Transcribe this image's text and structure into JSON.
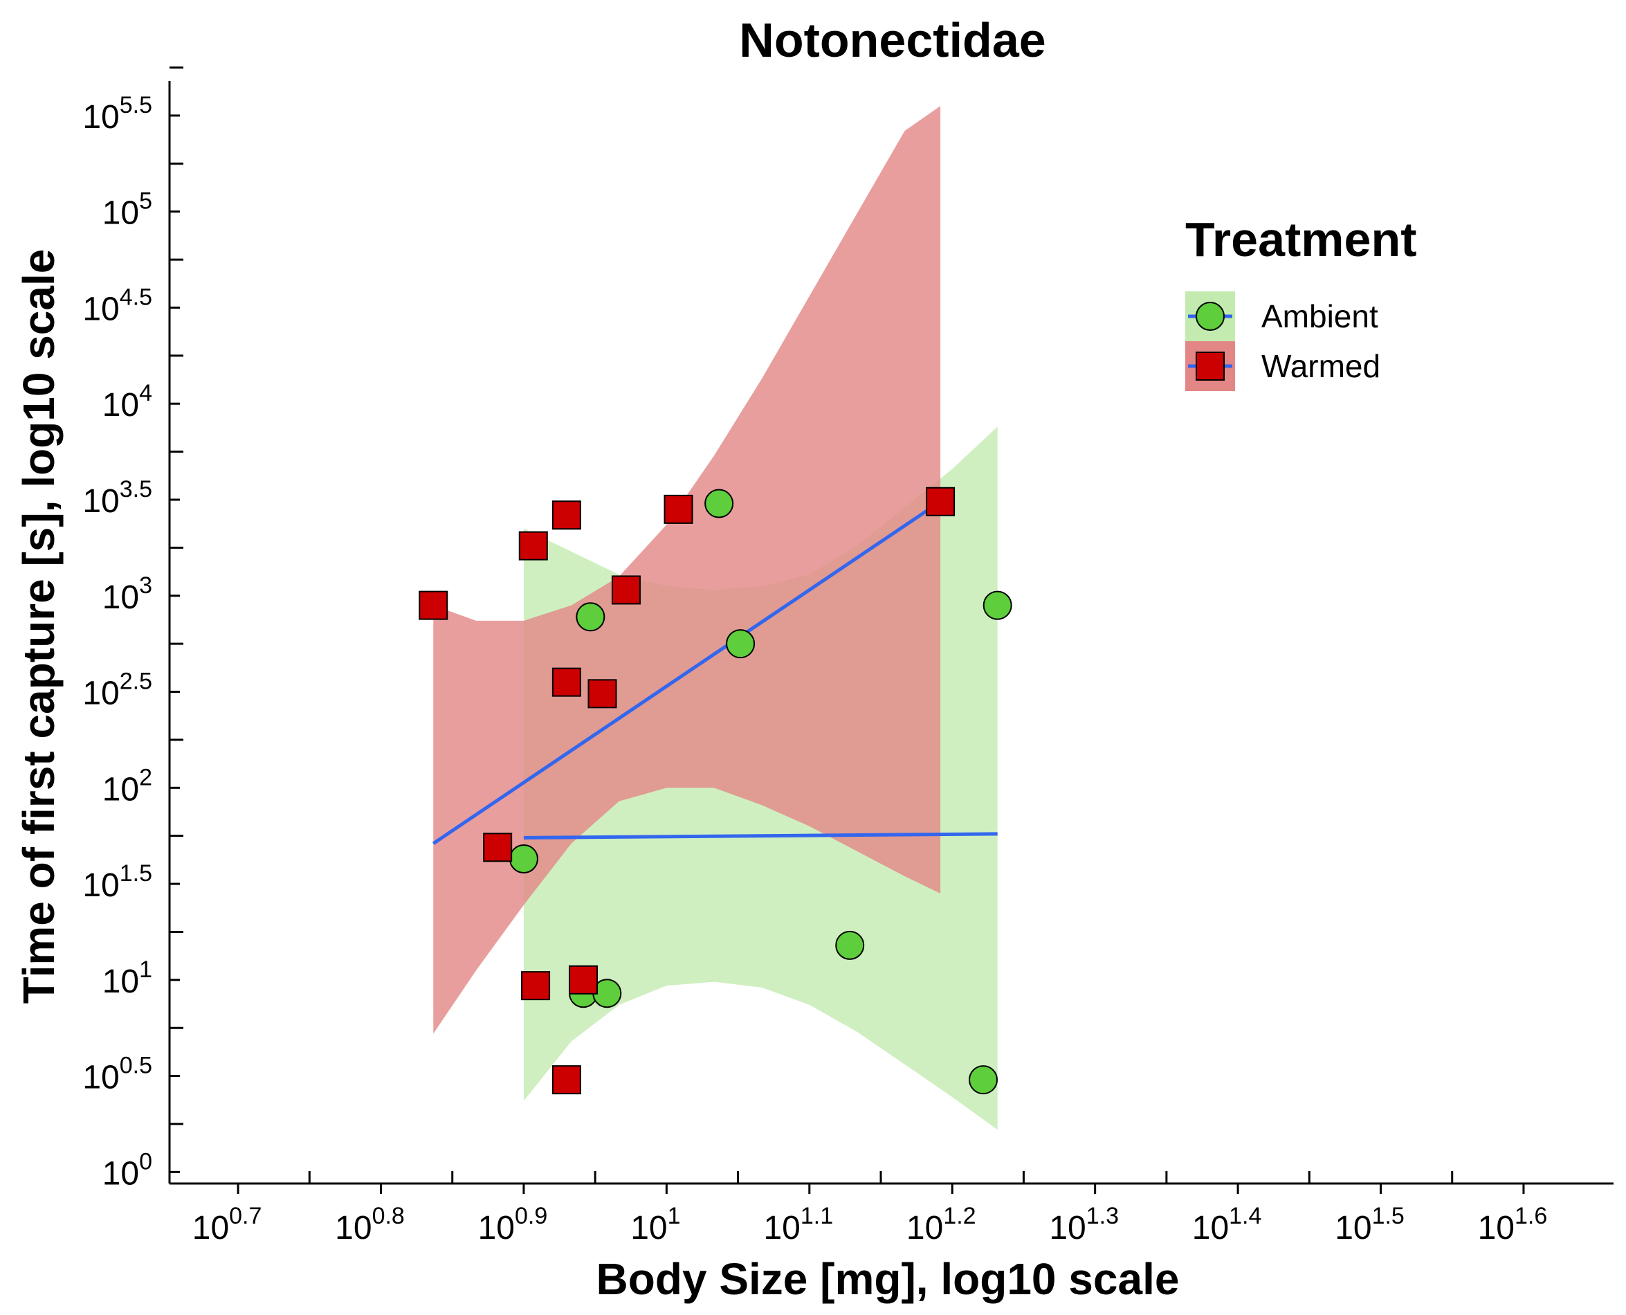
{
  "chart_data": {
    "type": "scatter",
    "title": "Notonectidae",
    "xlabel": "Body Size [mg], log10 scale",
    "ylabel": "Time of first capture [s], log10 scale",
    "x_scale": "log10",
    "y_scale": "log10",
    "x_tick_labels": [
      {
        "base": "10",
        "exp": "0.7",
        "v": 0.7
      },
      {
        "base": "10",
        "exp": "0.8",
        "v": 0.8
      },
      {
        "base": "10",
        "exp": "0.9",
        "v": 0.9
      },
      {
        "base": "10",
        "exp": "1",
        "v": 1.0
      },
      {
        "base": "10",
        "exp": "1.1",
        "v": 1.1
      },
      {
        "base": "10",
        "exp": "1.2",
        "v": 1.2
      },
      {
        "base": "10",
        "exp": "1.3",
        "v": 1.3
      },
      {
        "base": "10",
        "exp": "1.4",
        "v": 1.4
      },
      {
        "base": "10",
        "exp": "1.5",
        "v": 1.5
      },
      {
        "base": "10",
        "exp": "1.6",
        "v": 1.6
      }
    ],
    "y_tick_labels": [
      {
        "base": "10",
        "exp": "0",
        "v": 0
      },
      {
        "base": "10",
        "exp": "0.5",
        "v": 0.5
      },
      {
        "base": "10",
        "exp": "1",
        "v": 1
      },
      {
        "base": "10",
        "exp": "1.5",
        "v": 1.5
      },
      {
        "base": "10",
        "exp": "2",
        "v": 2
      },
      {
        "base": "10",
        "exp": "2.5",
        "v": 2.5
      },
      {
        "base": "10",
        "exp": "3",
        "v": 3
      },
      {
        "base": "10",
        "exp": "3.5",
        "v": 3.5
      },
      {
        "base": "10",
        "exp": "4",
        "v": 4
      },
      {
        "base": "10",
        "exp": "4.5",
        "v": 4.5
      },
      {
        "base": "10",
        "exp": "5",
        "v": 5
      },
      {
        "base": "10",
        "exp": "5.5",
        "v": 5.5
      }
    ],
    "xlim_log10": [
      0.652,
      1.663
    ],
    "ylim_log10": [
      -0.06,
      5.68
    ],
    "legend": {
      "title": "Treatment",
      "placement": "top-right",
      "entries": [
        "Ambient",
        "Warmed"
      ]
    },
    "series": [
      {
        "name": "Ambient",
        "marker": "circle",
        "color": "#5fce3c",
        "band_color": "#c3ebb0",
        "points_log10": [
          [
            0.9,
            1.63
          ],
          [
            0.9467,
            2.89
          ],
          [
            0.9417,
            0.93
          ],
          [
            0.9583,
            0.93
          ],
          [
            1.0367,
            3.48
          ],
          [
            1.0517,
            2.75
          ],
          [
            1.1283,
            1.18
          ],
          [
            1.2217,
            0.48
          ],
          [
            1.2317,
            2.95
          ]
        ],
        "fit_log10": [
          [
            0.9,
            1.74
          ],
          [
            1.2317,
            1.76
          ]
        ],
        "ci_log10": [
          {
            "x": 0.9,
            "lower": 0.37,
            "upper": 3.35
          },
          {
            "x": 0.9333,
            "lower": 0.68,
            "upper": 3.23
          },
          {
            "x": 0.9667,
            "lower": 0.87,
            "upper": 3.11
          },
          {
            "x": 1.0,
            "lower": 0.97,
            "upper": 3.05
          },
          {
            "x": 1.0333,
            "lower": 0.99,
            "upper": 3.03
          },
          {
            "x": 1.0667,
            "lower": 0.96,
            "upper": 3.05
          },
          {
            "x": 1.1,
            "lower": 0.87,
            "upper": 3.11
          },
          {
            "x": 1.1333,
            "lower": 0.73,
            "upper": 3.26
          },
          {
            "x": 1.1667,
            "lower": 0.56,
            "upper": 3.46
          },
          {
            "x": 1.2,
            "lower": 0.39,
            "upper": 3.66
          },
          {
            "x": 1.2317,
            "lower": 0.22,
            "upper": 3.88
          }
        ]
      },
      {
        "name": "Warmed",
        "marker": "square",
        "color": "#cc0000",
        "band_color": "#e38686",
        "points_log10": [
          [
            0.8367,
            2.95
          ],
          [
            0.8817,
            1.69
          ],
          [
            0.9067,
            3.26
          ],
          [
            0.9083,
            0.97
          ],
          [
            0.93,
            3.42
          ],
          [
            0.93,
            2.55
          ],
          [
            0.93,
            0.48
          ],
          [
            0.9417,
            1.0
          ],
          [
            0.955,
            2.49
          ],
          [
            0.9717,
            3.03
          ],
          [
            1.0083,
            3.45
          ],
          [
            1.1917,
            3.49
          ]
        ],
        "fit_log10": [
          [
            0.8367,
            1.71
          ],
          [
            1.1917,
            3.49
          ]
        ],
        "ci_log10": [
          {
            "x": 0.8367,
            "lower": 0.72,
            "upper": 2.95
          },
          {
            "x": 0.8667,
            "lower": 1.05,
            "upper": 2.87
          },
          {
            "x": 0.9,
            "lower": 1.39,
            "upper": 2.87
          },
          {
            "x": 0.9333,
            "lower": 1.71,
            "upper": 2.95
          },
          {
            "x": 0.9667,
            "lower": 1.93,
            "upper": 3.1
          },
          {
            "x": 1.0,
            "lower": 2.0,
            "upper": 3.37
          },
          {
            "x": 1.0333,
            "lower": 2.0,
            "upper": 3.73
          },
          {
            "x": 1.0667,
            "lower": 1.91,
            "upper": 4.13
          },
          {
            "x": 1.1,
            "lower": 1.8,
            "upper": 4.56
          },
          {
            "x": 1.1333,
            "lower": 1.67,
            "upper": 4.99
          },
          {
            "x": 1.1667,
            "lower": 1.54,
            "upper": 5.42
          },
          {
            "x": 1.1917,
            "lower": 1.45,
            "upper": 5.55
          }
        ]
      }
    ],
    "fit_line_color": "#3366ee",
    "grid": false
  }
}
